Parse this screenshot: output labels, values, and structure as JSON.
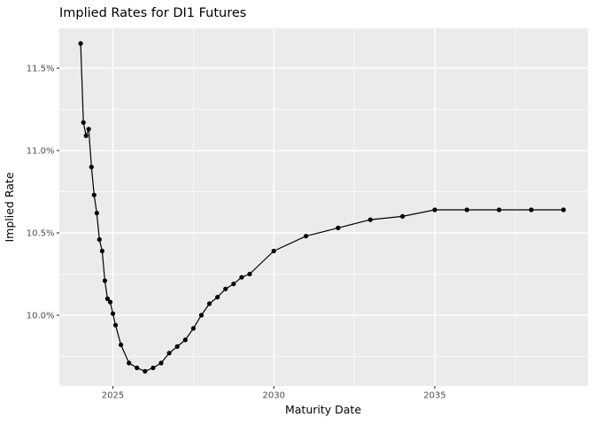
{
  "chart_data": {
    "type": "line",
    "title": "Implied Rates for DI1 Futures",
    "xlabel": "Maturity Date",
    "ylabel": "Implied Rate",
    "legend": "none",
    "grid": "on",
    "panel_bg": "#EBEBEB",
    "grid_color": "#FFFFFF",
    "line_color": "#000000",
    "point_color": "#000000",
    "axis_text_color": "#4d4d4d",
    "tick_mark_color": "#333333",
    "xlim_years": [
      2023.336,
      2039.76
    ],
    "ylim_percent": [
      9.57,
      11.742
    ],
    "x_major_ticks": [
      {
        "value": 2025,
        "label": "2025"
      },
      {
        "value": 2030,
        "label": "2030"
      },
      {
        "value": 2035,
        "label": "2035"
      }
    ],
    "x_minor_ticks": [
      2027.5,
      2032.5,
      2037.5
    ],
    "y_major_ticks": [
      {
        "value": 11.5,
        "label": "11.5%"
      },
      {
        "value": 11.0,
        "label": "11.0%"
      },
      {
        "value": 10.5,
        "label": "10.5%"
      },
      {
        "value": 10.0,
        "label": "10.0%"
      }
    ],
    "y_minor_ticks": [
      11.25,
      10.75,
      10.25,
      9.75
    ],
    "series": [
      {
        "maturity": "2024-01",
        "rate": 11.65
      },
      {
        "maturity": "2024-02",
        "rate": 11.17
      },
      {
        "maturity": "2024-03",
        "rate": 11.09
      },
      {
        "maturity": "2024-04",
        "rate": 11.13
      },
      {
        "maturity": "2024-05",
        "rate": 10.9
      },
      {
        "maturity": "2024-06",
        "rate": 10.73
      },
      {
        "maturity": "2024-07",
        "rate": 10.62
      },
      {
        "maturity": "2024-08",
        "rate": 10.46
      },
      {
        "maturity": "2024-09",
        "rate": 10.39
      },
      {
        "maturity": "2024-10",
        "rate": 10.21
      },
      {
        "maturity": "2024-11",
        "rate": 10.1
      },
      {
        "maturity": "2024-12",
        "rate": 10.08
      },
      {
        "maturity": "2025-01",
        "rate": 10.01
      },
      {
        "maturity": "2025-02",
        "rate": 9.94
      },
      {
        "maturity": "2025-04",
        "rate": 9.82
      },
      {
        "maturity": "2025-07",
        "rate": 9.71
      },
      {
        "maturity": "2025-10",
        "rate": 9.68
      },
      {
        "maturity": "2026-01",
        "rate": 9.66
      },
      {
        "maturity": "2026-04",
        "rate": 9.68
      },
      {
        "maturity": "2026-07",
        "rate": 9.71
      },
      {
        "maturity": "2026-10",
        "rate": 9.77
      },
      {
        "maturity": "2027-01",
        "rate": 9.81
      },
      {
        "maturity": "2027-04",
        "rate": 9.85
      },
      {
        "maturity": "2027-07",
        "rate": 9.92
      },
      {
        "maturity": "2027-10",
        "rate": 10.0
      },
      {
        "maturity": "2028-01",
        "rate": 10.07
      },
      {
        "maturity": "2028-04",
        "rate": 10.11
      },
      {
        "maturity": "2028-07",
        "rate": 10.16
      },
      {
        "maturity": "2028-10",
        "rate": 10.19
      },
      {
        "maturity": "2029-01",
        "rate": 10.23
      },
      {
        "maturity": "2029-04",
        "rate": 10.25
      },
      {
        "maturity": "2030-01",
        "rate": 10.39
      },
      {
        "maturity": "2031-01",
        "rate": 10.48
      },
      {
        "maturity": "2032-01",
        "rate": 10.53
      },
      {
        "maturity": "2033-01",
        "rate": 10.58
      },
      {
        "maturity": "2034-01",
        "rate": 10.6
      },
      {
        "maturity": "2035-01",
        "rate": 10.64
      },
      {
        "maturity": "2036-01",
        "rate": 10.64
      },
      {
        "maturity": "2037-01",
        "rate": 10.64
      },
      {
        "maturity": "2038-01",
        "rate": 10.64
      },
      {
        "maturity": "2039-01",
        "rate": 10.64
      }
    ]
  }
}
